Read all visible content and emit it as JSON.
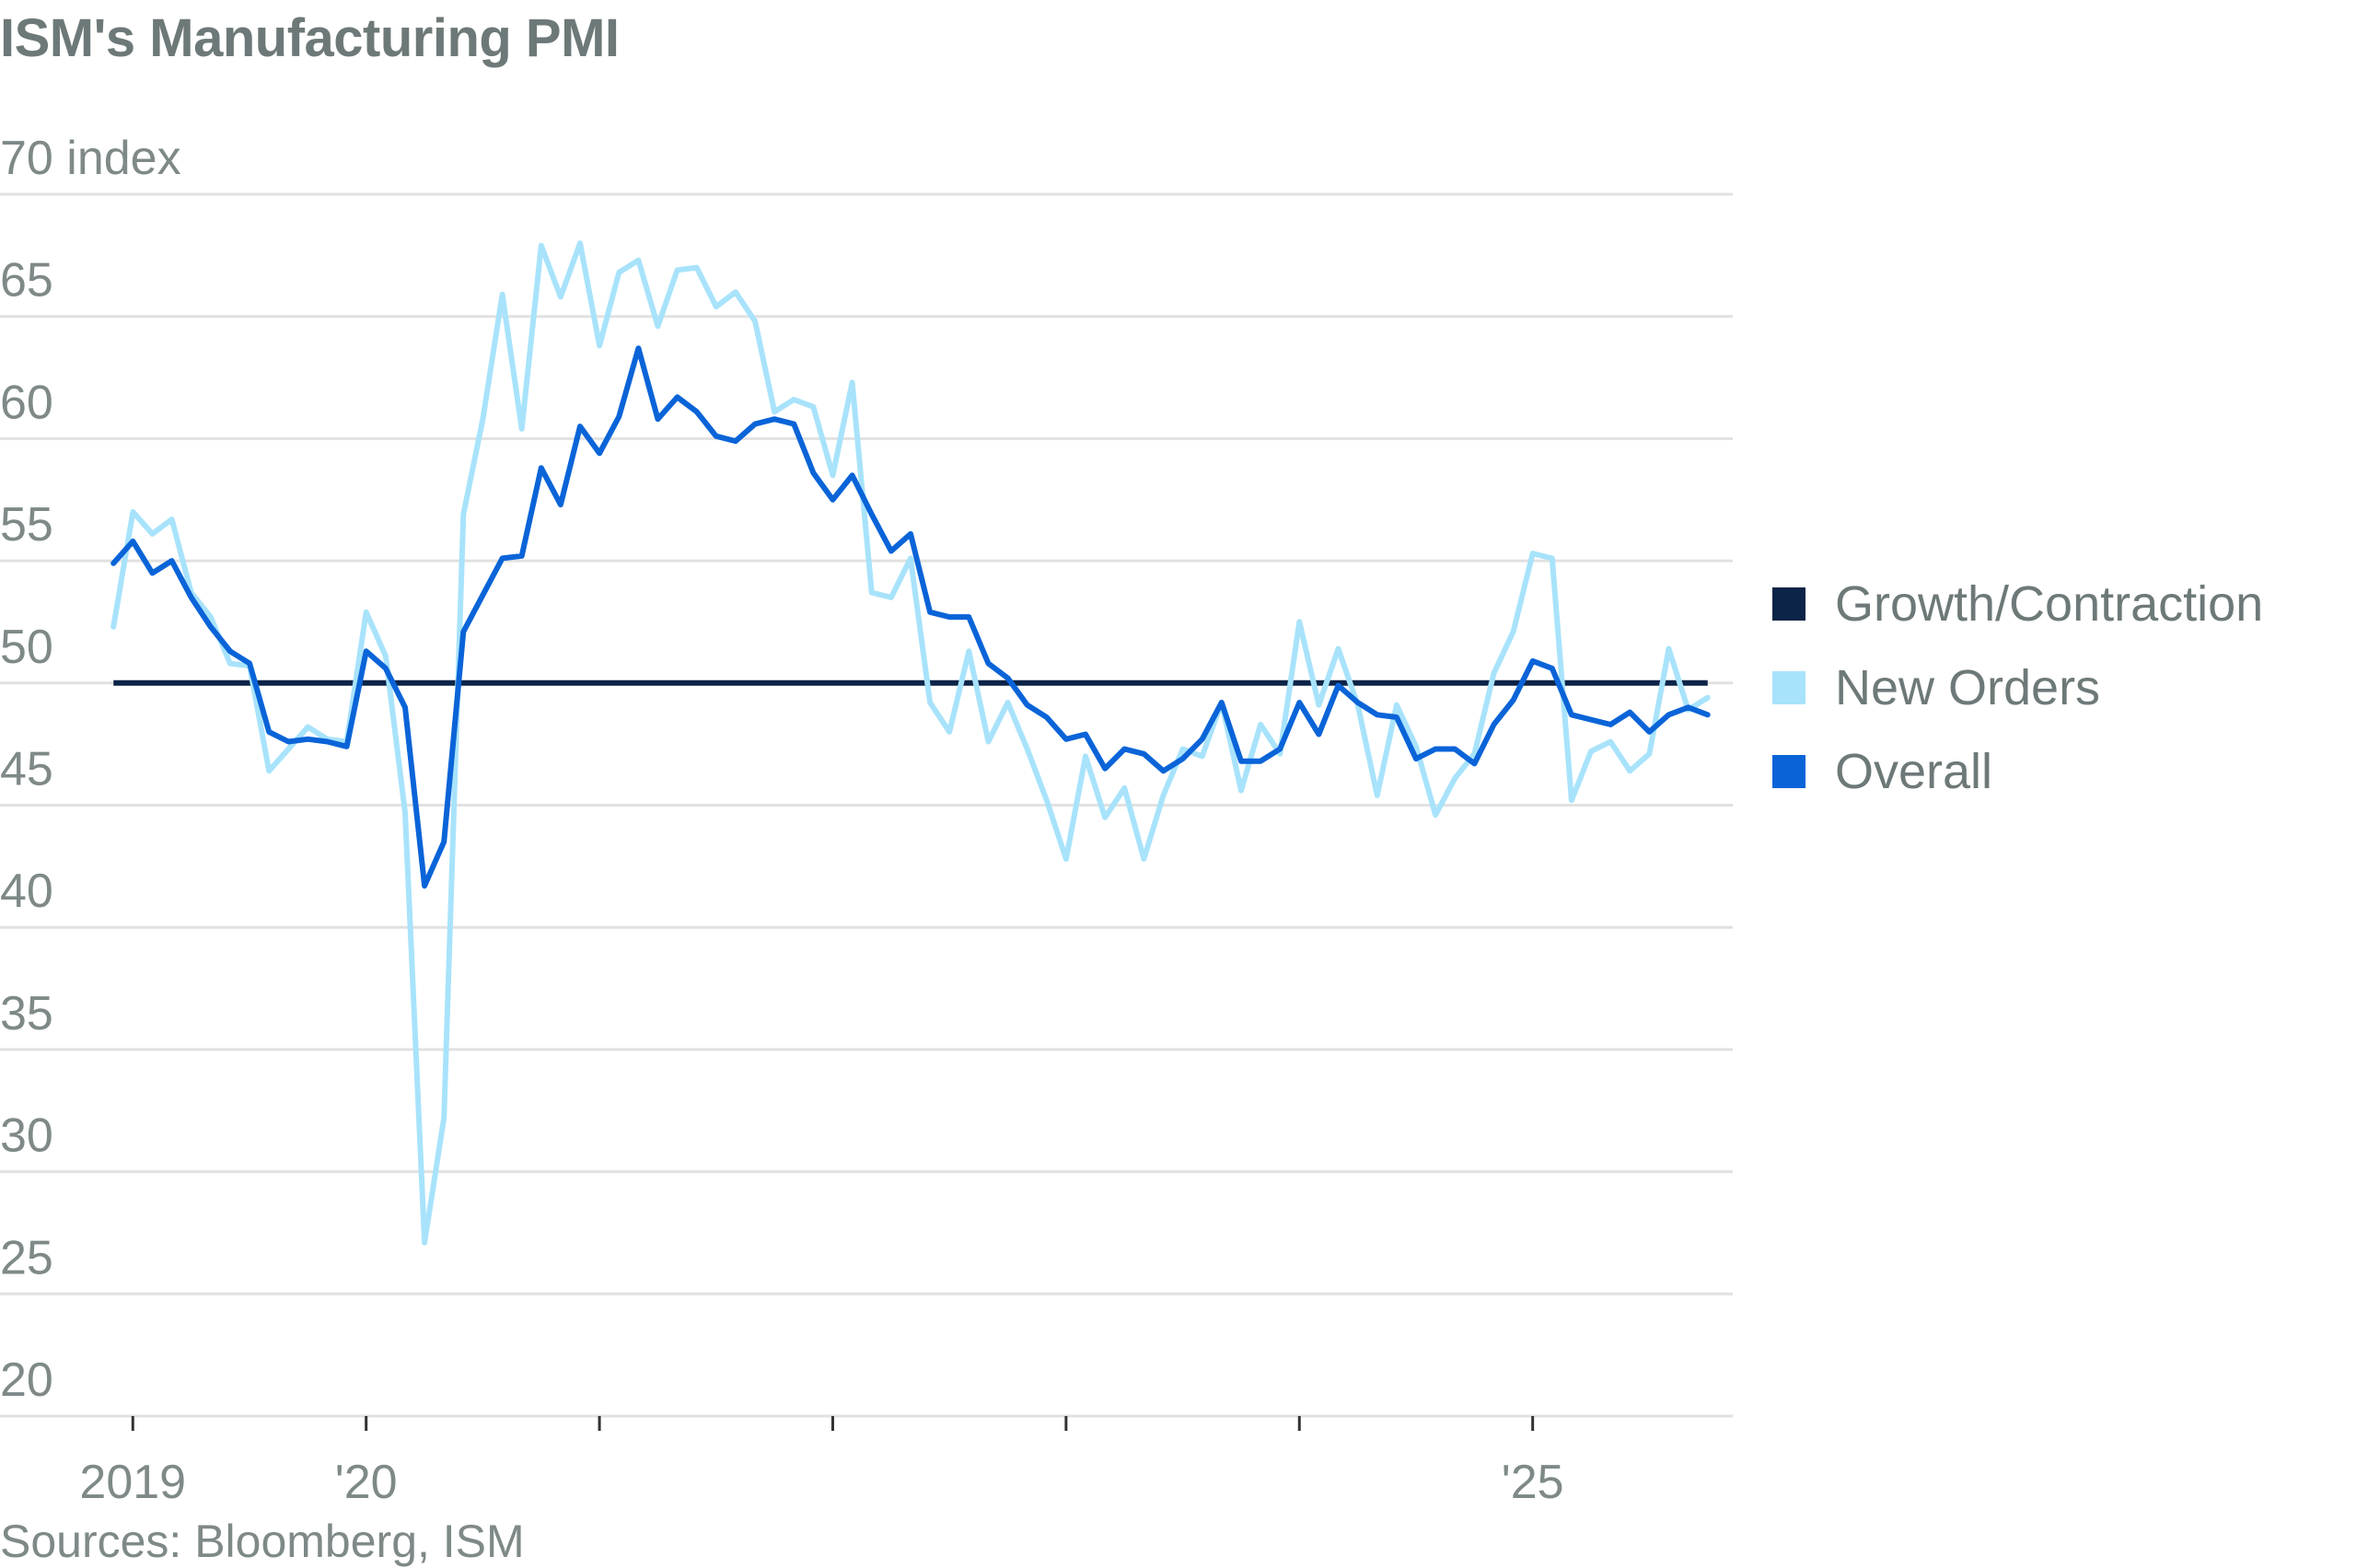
{
  "title": "ISM's Manufacturing PMI",
  "source": "Sources: Bloomberg, ISM",
  "colors": {
    "growth_contraction": "#0b2447",
    "new_orders": "#a8e3fb",
    "overall": "#0a64d8",
    "grid": "#e1e1e1",
    "text": "#7e8988"
  },
  "legend": [
    {
      "label": "Growth/Contraction",
      "color": "#0b2447"
    },
    {
      "label": "New Orders",
      "color": "#a8e3fb"
    },
    {
      "label": "Overall",
      "color": "#0a64d8"
    }
  ],
  "chart_data": {
    "type": "line",
    "title": "ISM's Manufacturing PMI",
    "ylabel": "index",
    "ylim": [
      20,
      70
    ],
    "y_ticks": [
      20,
      25,
      30,
      35,
      40,
      45,
      50,
      55,
      60,
      65,
      70
    ],
    "y_tick_labels": [
      "20",
      "25",
      "30",
      "35",
      "40",
      "45",
      "50",
      "55",
      "60",
      "65",
      "70 index"
    ],
    "x_range": [
      2018.92,
      2025.83
    ],
    "x_ticks": [
      2019,
      2020,
      2021,
      2022,
      2023,
      2024,
      2025
    ],
    "x_tick_labels": [
      "2019",
      "'20",
      "",
      "",
      "",
      "",
      "'25"
    ],
    "reference_line": {
      "name": "Growth/Contraction",
      "value": 50
    },
    "x_start": 2018.917,
    "x_step": 0.08333,
    "series": [
      {
        "name": "New Orders",
        "values": [
          52.3,
          57.0,
          56.1,
          56.7,
          53.7,
          52.7,
          50.8,
          50.7,
          46.4,
          47.3,
          48.2,
          47.7,
          47.6,
          52.9,
          51.1,
          44.7,
          27.1,
          32.2,
          56.9,
          60.8,
          65.9,
          60.4,
          67.9,
          65.8,
          68.0,
          63.8,
          66.8,
          67.3,
          64.6,
          66.9,
          67.0,
          65.4,
          66.0,
          64.8,
          61.1,
          61.6,
          61.3,
          58.5,
          62.3,
          53.7,
          53.5,
          55.1,
          49.2,
          48.0,
          51.3,
          47.6,
          49.2,
          47.3,
          45.2,
          42.8,
          47.0,
          44.5,
          45.7,
          42.8,
          45.4,
          47.3,
          47.0,
          49.2,
          45.6,
          48.3,
          47.1,
          52.5,
          49.1,
          51.4,
          49.1,
          45.4,
          49.1,
          47.4,
          44.6,
          46.1,
          47.1,
          50.4,
          52.1,
          55.3,
          55.1,
          45.2,
          47.2,
          47.6,
          46.4,
          47.1,
          51.4,
          48.9,
          49.4
        ]
      },
      {
        "name": "Overall",
        "values": [
          54.9,
          55.8,
          54.5,
          55.0,
          53.5,
          52.3,
          51.3,
          50.8,
          48.0,
          47.6,
          47.7,
          47.6,
          47.4,
          51.3,
          50.6,
          49.0,
          41.7,
          43.5,
          52.1,
          53.6,
          55.1,
          55.2,
          58.8,
          57.3,
          60.5,
          59.4,
          60.9,
          63.7,
          60.8,
          61.7,
          61.1,
          60.1,
          59.9,
          60.6,
          60.8,
          60.6,
          58.6,
          57.5,
          58.5,
          56.9,
          55.4,
          56.1,
          52.9,
          52.7,
          52.7,
          50.8,
          50.2,
          49.1,
          48.6,
          47.7,
          47.9,
          46.5,
          47.3,
          47.1,
          46.4,
          46.9,
          47.7,
          49.2,
          46.8,
          46.8,
          47.3,
          49.2,
          47.9,
          49.9,
          49.2,
          48.7,
          48.6,
          46.9,
          47.3,
          47.3,
          46.7,
          48.3,
          49.3,
          50.9,
          50.6,
          48.7,
          48.5,
          48.3,
          48.8,
          48.0,
          48.7,
          49.0,
          48.7
        ]
      }
    ]
  }
}
